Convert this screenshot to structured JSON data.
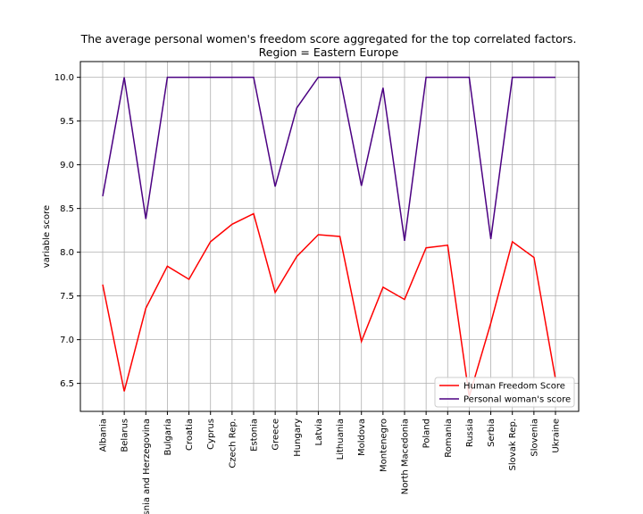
{
  "chart_data": {
    "type": "line",
    "title": "The average personal women's freedom score aggregated for the top correlated factors.",
    "subtitle": "Region = Eastern Europe",
    "xlabel": "",
    "ylabel": "variable score",
    "ylim": [
      6.18,
      10.18
    ],
    "yticks": [
      6.5,
      7.0,
      7.5,
      8.0,
      8.5,
      9.0,
      9.5,
      10.0
    ],
    "ytick_labels": [
      "6.5",
      "7.0",
      "7.5",
      "8.0",
      "8.5",
      "9.0",
      "9.5",
      "10.0"
    ],
    "grid": true,
    "legend_position": "bottom-right",
    "categories": [
      "Albania",
      "Belarus",
      "Bosnia and Herzegovina",
      "Bulgaria",
      "Croatia",
      "Cyprus",
      "Czech Rep.",
      "Estonia",
      "Greece",
      "Hungary",
      "Latvia",
      "Lithuania",
      "Moldova",
      "Montenegro",
      "North Macedonia",
      "Poland",
      "Romania",
      "Russia",
      "Serbia",
      "Slovak Rep.",
      "Slovenia",
      "Ukraine"
    ],
    "series": [
      {
        "name": "Human Freedom Score",
        "color": "#ff0000",
        "values": [
          7.63,
          6.41,
          7.36,
          7.84,
          7.69,
          8.12,
          8.32,
          8.44,
          7.54,
          7.95,
          8.2,
          8.18,
          6.98,
          7.6,
          7.46,
          8.05,
          8.08,
          6.35,
          7.19,
          8.12,
          7.94,
          6.55
        ]
      },
      {
        "name": "Personal woman's score",
        "color": "#4b0082",
        "values": [
          8.64,
          10.0,
          8.38,
          10.0,
          10.0,
          10.0,
          10.0,
          10.0,
          8.75,
          9.65,
          10.0,
          10.0,
          8.76,
          9.88,
          8.13,
          10.0,
          10.0,
          10.0,
          8.15,
          10.0,
          10.0,
          10.0
        ]
      }
    ]
  }
}
